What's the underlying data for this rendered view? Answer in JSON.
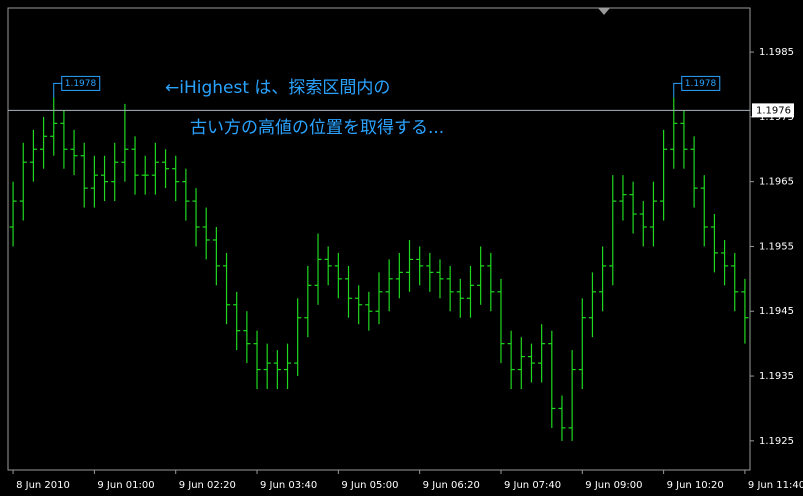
{
  "chart_data": {
    "type": "ohlc",
    "annotations": [
      "←iHighest は、探索区間内の",
      "古い方の高値の位置を取得する..."
    ],
    "categories": [
      "8 Jun 2010",
      null,
      null,
      null,
      null,
      null,
      null,
      null,
      "9 Jun 01:00",
      null,
      null,
      null,
      null,
      null,
      null,
      null,
      "9 Jun 02:20",
      null,
      null,
      null,
      null,
      null,
      null,
      null,
      "9 Jun 03:40",
      null,
      null,
      null,
      null,
      null,
      null,
      null,
      "9 Jun 05:00",
      null,
      null,
      null,
      null,
      null,
      null,
      null,
      "9 Jun 06:20",
      null,
      null,
      null,
      null,
      null,
      null,
      null,
      "9 Jun 07:40",
      null,
      null,
      null,
      null,
      null,
      null,
      null,
      "9 Jun 09:00",
      null,
      null,
      null,
      null,
      null,
      null,
      null,
      "9 Jun 10:20",
      null,
      null,
      null,
      null,
      null,
      null,
      null,
      "9 Jun 11:40"
    ],
    "open": [
      1.1958,
      1.1962,
      1.1968,
      1.197,
      1.1972,
      1.1974,
      1.197,
      1.1969,
      1.1964,
      1.1966,
      1.1965,
      1.1968,
      1.197,
      1.1966,
      1.1966,
      1.1968,
      1.1967,
      1.1965,
      1.1962,
      1.1958,
      1.1956,
      1.1952,
      1.1946,
      1.1942,
      1.194,
      1.1936,
      1.1937,
      1.1936,
      1.1937,
      1.1944,
      1.1949,
      1.1953,
      1.1952,
      1.195,
      1.1947,
      1.1946,
      1.1945,
      1.1948,
      1.195,
      1.1951,
      1.1953,
      1.1952,
      1.1951,
      1.195,
      1.1948,
      1.1947,
      1.1949,
      1.1952,
      1.1948,
      1.194,
      1.1936,
      1.1938,
      1.1937,
      1.194,
      1.193,
      1.1927,
      1.1936,
      1.1944,
      1.1948,
      1.1952,
      1.1962,
      1.1963,
      1.196,
      1.1958,
      1.1962,
      1.197,
      1.1974,
      1.197,
      1.1964,
      1.1958,
      1.1954,
      1.1952,
      1.1948
    ],
    "high": [
      1.1965,
      1.1971,
      1.1973,
      1.1975,
      1.1978,
      1.1976,
      1.1973,
      1.1971,
      1.1969,
      1.1969,
      1.1971,
      1.1977,
      1.1972,
      1.1969,
      1.1971,
      1.197,
      1.1969,
      1.1967,
      1.1964,
      1.1961,
      1.1958,
      1.1954,
      1.1948,
      1.1945,
      1.1942,
      1.194,
      1.1939,
      1.194,
      1.1947,
      1.1952,
      1.1957,
      1.1955,
      1.1954,
      1.1952,
      1.1949,
      1.1948,
      1.1951,
      1.1953,
      1.1954,
      1.1956,
      1.1955,
      1.1954,
      1.1953,
      1.1952,
      1.195,
      1.1952,
      1.1955,
      1.1954,
      1.195,
      1.1942,
      1.1941,
      1.194,
      1.1943,
      1.1942,
      1.1932,
      1.1939,
      1.1947,
      1.1951,
      1.1955,
      1.1966,
      1.1966,
      1.1965,
      1.1962,
      1.1965,
      1.1973,
      1.1978,
      1.1976,
      1.1972,
      1.1966,
      1.196,
      1.1956,
      1.1954,
      1.195
    ],
    "low": [
      1.1955,
      1.1959,
      1.1965,
      1.1967,
      1.1969,
      1.1967,
      1.1966,
      1.1961,
      1.1961,
      1.1962,
      1.1962,
      1.1965,
      1.1963,
      1.1963,
      1.1963,
      1.1964,
      1.1962,
      1.1959,
      1.1955,
      1.1953,
      1.1949,
      1.1943,
      1.1939,
      1.1937,
      1.1933,
      1.1933,
      1.1933,
      1.1933,
      1.1935,
      1.1941,
      1.1946,
      1.1949,
      1.1947,
      1.1944,
      1.1943,
      1.1942,
      1.1943,
      1.1945,
      1.1947,
      1.1948,
      1.1949,
      1.1948,
      1.1947,
      1.1945,
      1.1944,
      1.1944,
      1.1946,
      1.1945,
      1.1937,
      1.1933,
      1.1933,
      1.1934,
      1.1934,
      1.1927,
      1.1925,
      1.1925,
      1.1933,
      1.1941,
      1.1945,
      1.1949,
      1.1959,
      1.1957,
      1.1955,
      1.1955,
      1.1959,
      1.1967,
      1.1967,
      1.1961,
      1.1955,
      1.1951,
      1.1949,
      1.1945,
      1.194
    ],
    "close": [
      1.1962,
      1.1968,
      1.197,
      1.1972,
      1.1974,
      1.197,
      1.1969,
      1.1964,
      1.1966,
      1.1965,
      1.1968,
      1.197,
      1.1966,
      1.1966,
      1.1968,
      1.1967,
      1.1965,
      1.1962,
      1.1958,
      1.1956,
      1.1952,
      1.1946,
      1.1942,
      1.194,
      1.1936,
      1.1937,
      1.1936,
      1.1937,
      1.1944,
      1.1949,
      1.1953,
      1.1952,
      1.195,
      1.1947,
      1.1946,
      1.1945,
      1.1948,
      1.195,
      1.1951,
      1.1953,
      1.1952,
      1.1951,
      1.195,
      1.1948,
      1.1947,
      1.1949,
      1.1952,
      1.1948,
      1.194,
      1.1936,
      1.1938,
      1.1937,
      1.194,
      1.193,
      1.1927,
      1.1936,
      1.1944,
      1.1948,
      1.1952,
      1.1962,
      1.1963,
      1.196,
      1.1958,
      1.1962,
      1.197,
      1.1974,
      1.197,
      1.1964,
      1.1958,
      1.1954,
      1.1952,
      1.1948,
      1.1944
    ],
    "color": "#1fd81f",
    "current_price": 1.1976,
    "ylim": [
      1.19205,
      1.19918
    ],
    "yticks": [
      1.1925,
      1.1935,
      1.1945,
      1.1955,
      1.1965,
      1.1975,
      1.1985
    ]
  }
}
